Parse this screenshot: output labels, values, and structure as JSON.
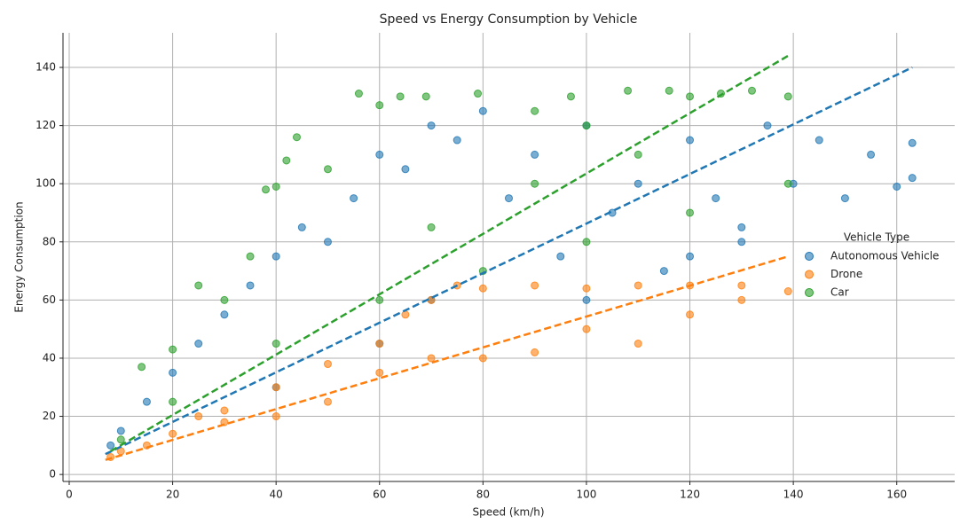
{
  "chart_data": {
    "type": "scatter",
    "title": "Speed vs Energy Consumption by Vehicle",
    "x_label": "Speed (km/h)",
    "y_label": "Energy Consumption",
    "legend_title": "Vehicle Type",
    "legend_position": "right",
    "grid": true,
    "xlim": [
      -1.2,
      171.2
    ],
    "ylim": [
      -2.4,
      151.9
    ],
    "xticks": [
      0,
      20,
      40,
      60,
      80,
      100,
      120,
      140,
      160
    ],
    "yticks": [
      0,
      20,
      40,
      60,
      80,
      100,
      120,
      140
    ],
    "series": [
      {
        "name": "Autonomous Vehicle",
        "color": "#1f77b4",
        "x": [
          8,
          10,
          15,
          20,
          25,
          30,
          35,
          40,
          45,
          50,
          55,
          60,
          65,
          70,
          75,
          80,
          85,
          90,
          95,
          100,
          105,
          110,
          115,
          120,
          125,
          130,
          135,
          140,
          145,
          150,
          155,
          160,
          163,
          163,
          70,
          100,
          130,
          40,
          60,
          120
        ],
        "values": [
          10,
          15,
          25,
          35,
          45,
          55,
          65,
          75,
          85,
          80,
          95,
          110,
          105,
          120,
          115,
          125,
          95,
          110,
          75,
          120,
          90,
          100,
          70,
          115,
          95,
          85,
          120,
          100,
          115,
          95,
          110,
          99,
          114,
          102,
          60,
          60,
          80,
          30,
          45,
          75
        ],
        "trend": {
          "x": [
            7,
            163
          ],
          "y": [
            7,
            140
          ]
        }
      },
      {
        "name": "Drone",
        "color": "#ff7f0e",
        "x": [
          8,
          10,
          15,
          20,
          25,
          30,
          40,
          50,
          60,
          65,
          70,
          75,
          80,
          90,
          100,
          110,
          120,
          130,
          139,
          100,
          120,
          80,
          60,
          40,
          30,
          110,
          130,
          90,
          70,
          50
        ],
        "values": [
          6,
          8,
          10,
          14,
          20,
          22,
          30,
          38,
          45,
          55,
          60,
          65,
          64,
          65,
          64,
          65,
          65,
          65,
          63,
          50,
          55,
          40,
          35,
          20,
          18,
          45,
          60,
          42,
          40,
          25
        ],
        "trend": {
          "x": [
            7,
            139
          ],
          "y": [
            5,
            75
          ]
        }
      },
      {
        "name": "Car",
        "color": "#2ca02c",
        "x": [
          10,
          14,
          20,
          25,
          30,
          35,
          38,
          40,
          42,
          44,
          50,
          56,
          60,
          64,
          69,
          79,
          90,
          97,
          100,
          108,
          116,
          120,
          126,
          132,
          139,
          139,
          120,
          100,
          80,
          60,
          40,
          20,
          110,
          90,
          70
        ],
        "values": [
          12,
          37,
          43,
          65,
          60,
          75,
          98,
          99,
          108,
          116,
          105,
          131,
          127,
          130,
          130,
          131,
          125,
          130,
          120,
          132,
          132,
          130,
          131,
          132,
          130,
          100,
          90,
          80,
          70,
          60,
          45,
          25,
          110,
          100,
          85
        ],
        "trend": {
          "x": [
            8,
            139
          ],
          "y": [
            8,
            144
          ]
        }
      }
    ]
  }
}
